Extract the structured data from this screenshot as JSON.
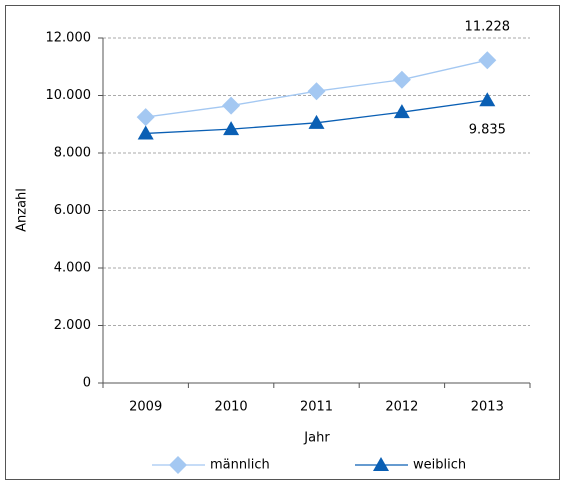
{
  "chart_data": {
    "type": "line",
    "x_label": "Jahr",
    "y_label": "Anzahl",
    "categories": [
      "2009",
      "2010",
      "2011",
      "2012",
      "2013"
    ],
    "series": [
      {
        "name": "männlich",
        "color": "#a4c8f2",
        "marker": "diamond",
        "values": [
          9250,
          9650,
          10150,
          10550,
          11228
        ],
        "value_labels": [
          null,
          null,
          null,
          null,
          "11.228"
        ]
      },
      {
        "name": "weiblich",
        "color": "#0a5fb4",
        "marker": "triangle",
        "values": [
          8680,
          8830,
          9050,
          9420,
          9835
        ],
        "value_labels": [
          null,
          null,
          null,
          null,
          "9.835"
        ]
      }
    ],
    "ylim": [
      0,
      12000
    ],
    "yticks": [
      0,
      {
        "value": 2000,
        "label": "2.000"
      },
      {
        "value": 4000,
        "label": "4.000"
      },
      {
        "value": 6000,
        "label": "6.000"
      },
      {
        "value": 8000,
        "label": "8.000"
      },
      {
        "value": 10000,
        "label": "10.000"
      },
      {
        "value": 12000,
        "label": "12.000"
      }
    ],
    "grid": true
  }
}
